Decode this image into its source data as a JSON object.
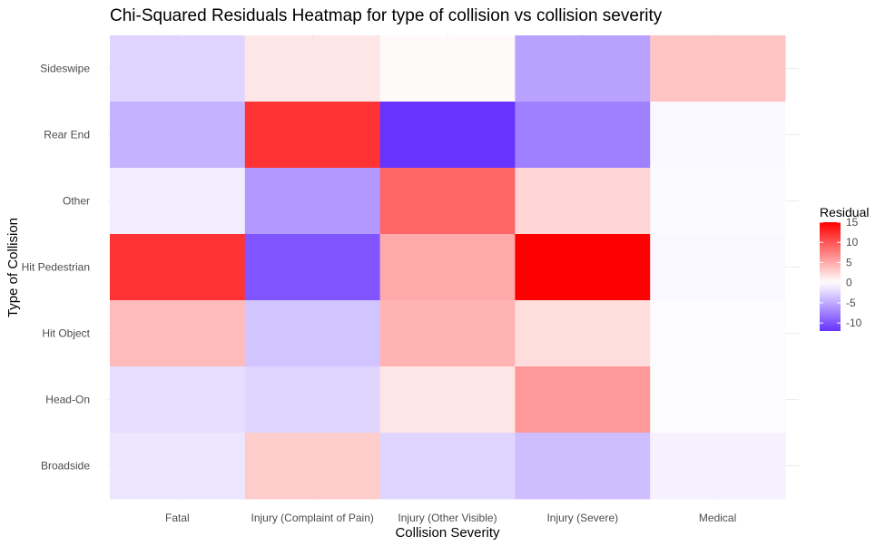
{
  "chart_data": {
    "type": "heatmap",
    "title": "Chi-Squared Residuals Heatmap for type of collision vs collision severity",
    "xlabel": "Collision Severity",
    "ylabel": "Type of Collision",
    "x_categories": [
      "Fatal",
      "Injury (Complaint of Pain)",
      "Injury (Other Visible)",
      "Injury (Severe)",
      "Medical"
    ],
    "y_categories": [
      "Sideswipe",
      "Rear End",
      "Other",
      "Hit Pedestrian",
      "Hit Object",
      "Head-On",
      "Broadside"
    ],
    "values": [
      [
        -2.5,
        1.5,
        0.3,
        -5.5,
        3.5
      ],
      [
        -4.5,
        12.0,
        -12.0,
        -7.5,
        -0.5
      ],
      [
        -1.0,
        -6.0,
        9.0,
        2.5,
        -0.3
      ],
      [
        12.0,
        -10.0,
        5.0,
        15.0,
        -0.5
      ],
      [
        4.0,
        -3.5,
        4.5,
        2.0,
        -0.2
      ],
      [
        -2.0,
        -2.5,
        1.5,
        6.0,
        -0.2
      ],
      [
        -1.5,
        3.0,
        -2.5,
        -3.8,
        -0.8
      ]
    ],
    "legend": {
      "title": "Residual",
      "position": "right",
      "ticks": [
        15,
        10,
        5,
        0,
        -5,
        -10
      ],
      "range": [
        -12,
        15
      ],
      "low_color": "#6633ff",
      "mid_color": "#ffffff",
      "high_color": "#ff0000"
    },
    "grid": true
  }
}
